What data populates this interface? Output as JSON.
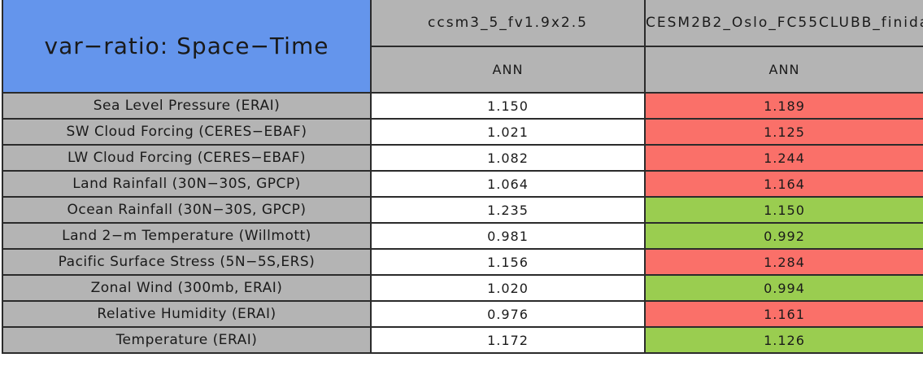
{
  "colors": {
    "title_blue": "#6495EC",
    "header_gray": "#B4B4B4",
    "flag_red": "#FA7069",
    "flag_green": "#9ACD50",
    "plain_white": "#FFFFFF",
    "border_dark": "#2B2B2B"
  },
  "table": {
    "title": "var−ratio: Space−Time",
    "columns": [
      {
        "model": "ccsm3_5_fv1.9x2.5",
        "season": "ANN"
      },
      {
        "model": "CESM2B2_Oslo_FC55CLUBB_finida",
        "season": "ANN"
      }
    ],
    "rows": [
      {
        "label": "Sea Level Pressure (ERAI)",
        "values": [
          {
            "text": "1.150",
            "bg": "plain_white"
          },
          {
            "text": "1.189",
            "bg": "flag_red"
          }
        ]
      },
      {
        "label": "SW Cloud Forcing (CERES−EBAF)",
        "values": [
          {
            "text": "1.021",
            "bg": "plain_white"
          },
          {
            "text": "1.125",
            "bg": "flag_red"
          }
        ]
      },
      {
        "label": "LW Cloud Forcing (CERES−EBAF)",
        "values": [
          {
            "text": "1.082",
            "bg": "plain_white"
          },
          {
            "text": "1.244",
            "bg": "flag_red"
          }
        ]
      },
      {
        "label": "Land Rainfall (30N−30S, GPCP)",
        "values": [
          {
            "text": "1.064",
            "bg": "plain_white"
          },
          {
            "text": "1.164",
            "bg": "flag_red"
          }
        ]
      },
      {
        "label": "Ocean Rainfall (30N−30S, GPCP)",
        "values": [
          {
            "text": "1.235",
            "bg": "plain_white"
          },
          {
            "text": "1.150",
            "bg": "flag_green"
          }
        ]
      },
      {
        "label": "Land 2−m Temperature (Willmott)",
        "values": [
          {
            "text": "0.981",
            "bg": "plain_white"
          },
          {
            "text": "0.992",
            "bg": "flag_green"
          }
        ]
      },
      {
        "label": "Pacific Surface Stress (5N−5S,ERS)",
        "values": [
          {
            "text": "1.156",
            "bg": "plain_white"
          },
          {
            "text": "1.284",
            "bg": "flag_red"
          }
        ]
      },
      {
        "label": "Zonal Wind (300mb, ERAI)",
        "values": [
          {
            "text": "1.020",
            "bg": "plain_white"
          },
          {
            "text": "0.994",
            "bg": "flag_green"
          }
        ]
      },
      {
        "label": "Relative Humidity (ERAI)",
        "values": [
          {
            "text": "0.976",
            "bg": "plain_white"
          },
          {
            "text": "1.161",
            "bg": "flag_red"
          }
        ]
      },
      {
        "label": "Temperature (ERAI)",
        "values": [
          {
            "text": "1.172",
            "bg": "plain_white"
          },
          {
            "text": "1.126",
            "bg": "flag_green"
          }
        ]
      }
    ]
  },
  "chart_data": {
    "type": "table",
    "title": "var−ratio: Space−Time",
    "column_groups": [
      "ccsm3_5_fv1.9x2.5",
      "CESM2B2_Oslo_FC55CLUBB_finida"
    ],
    "column_subheaders": [
      "ANN",
      "ANN"
    ],
    "categories": [
      "Sea Level Pressure (ERAI)",
      "SW Cloud Forcing (CERES−EBAF)",
      "LW Cloud Forcing (CERES−EBAF)",
      "Land Rainfall (30N−30S, GPCP)",
      "Ocean Rainfall (30N−30S, GPCP)",
      "Land 2−m Temperature (Willmott)",
      "Pacific Surface Stress (5N−5S,ERS)",
      "Zonal Wind (300mb, ERAI)",
      "Relative Humidity (ERAI)",
      "Temperature (ERAI)"
    ],
    "series": [
      {
        "name": "ccsm3_5_fv1.9x2.5",
        "values": [
          1.15,
          1.021,
          1.082,
          1.064,
          1.235,
          0.981,
          1.156,
          1.02,
          0.976,
          1.172
        ]
      },
      {
        "name": "CESM2B2_Oslo_FC55CLUBB_finida",
        "values": [
          1.189,
          1.125,
          1.244,
          1.164,
          1.15,
          0.992,
          1.284,
          0.994,
          1.161,
          1.126
        ]
      }
    ],
    "cell_flags_second_series": [
      "red",
      "red",
      "red",
      "red",
      "green",
      "green",
      "red",
      "green",
      "red",
      "green"
    ],
    "legend_position": "none",
    "grid": "all-borders"
  }
}
